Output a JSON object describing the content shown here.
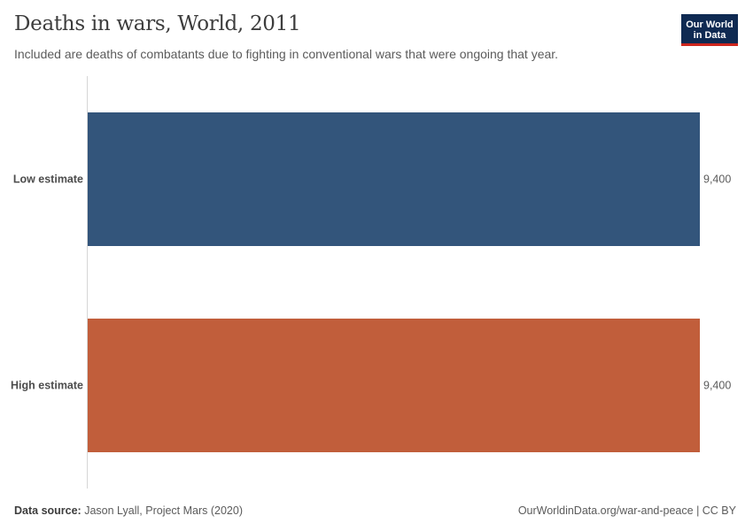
{
  "header": {
    "title": "Deaths in wars, World, 2011",
    "subtitle": "Included are deaths of combatants due to fighting in conventional wars that were ongoing that year.",
    "logo_line1": "Our World",
    "logo_line2": "in Data"
  },
  "footer": {
    "source_label": "Data source:",
    "source_text": "Jason Lyall, Project Mars (2020)",
    "url_license": "OurWorldinData.org/war-and-peace | CC BY"
  },
  "chart_data": {
    "type": "bar",
    "orientation": "horizontal",
    "categories": [
      "Low estimate",
      "High estimate"
    ],
    "values": [
      9400,
      9400
    ],
    "value_labels": [
      "9,400",
      "9,400"
    ],
    "colors": [
      "#33557b",
      "#c15e3b"
    ],
    "xlim": [
      0,
      9400
    ],
    "grid": false
  }
}
